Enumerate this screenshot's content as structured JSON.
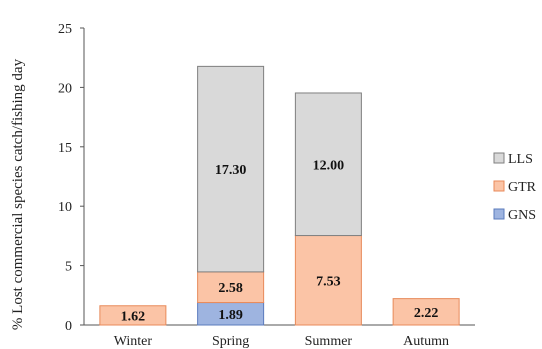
{
  "chart_data": {
    "type": "bar",
    "stacked": true,
    "categories": [
      "Winter",
      "Spring",
      "Summer",
      "Autumn"
    ],
    "series": [
      {
        "name": "GNS",
        "values": [
          0,
          1.89,
          0,
          0
        ],
        "color": "#9eb4e0",
        "stroke": "#5b7bbd"
      },
      {
        "name": "GTR",
        "values": [
          1.62,
          2.58,
          7.53,
          2.22
        ],
        "color": "#fbc4a6",
        "stroke": "#e88a5a"
      },
      {
        "name": "LLS",
        "values": [
          0,
          17.3,
          12.0,
          0
        ],
        "color": "#d9d9d9",
        "stroke": "#7f7f7f"
      }
    ],
    "data_labels": [
      {
        "category": "Winter",
        "series": "GTR",
        "text": "1.62"
      },
      {
        "category": "Spring",
        "series": "GNS",
        "text": "1.89"
      },
      {
        "category": "Spring",
        "series": "GTR",
        "text": "2.58"
      },
      {
        "category": "Spring",
        "series": "LLS",
        "text": "17.30"
      },
      {
        "category": "Summer",
        "series": "GTR",
        "text": "7.53"
      },
      {
        "category": "Summer",
        "series": "LLS",
        "text": "12.00"
      },
      {
        "category": "Autumn",
        "series": "GTR",
        "text": "2.22"
      }
    ],
    "title": "",
    "xlabel": "",
    "ylabel": "% Lost commercial  species catch/fishing day",
    "ylim": [
      0,
      25
    ],
    "yticks": [
      0,
      5,
      10,
      15,
      20,
      25
    ],
    "grid": false,
    "legend_position": "right",
    "legend_order": [
      "LLS",
      "GTR",
      "GNS"
    ]
  }
}
